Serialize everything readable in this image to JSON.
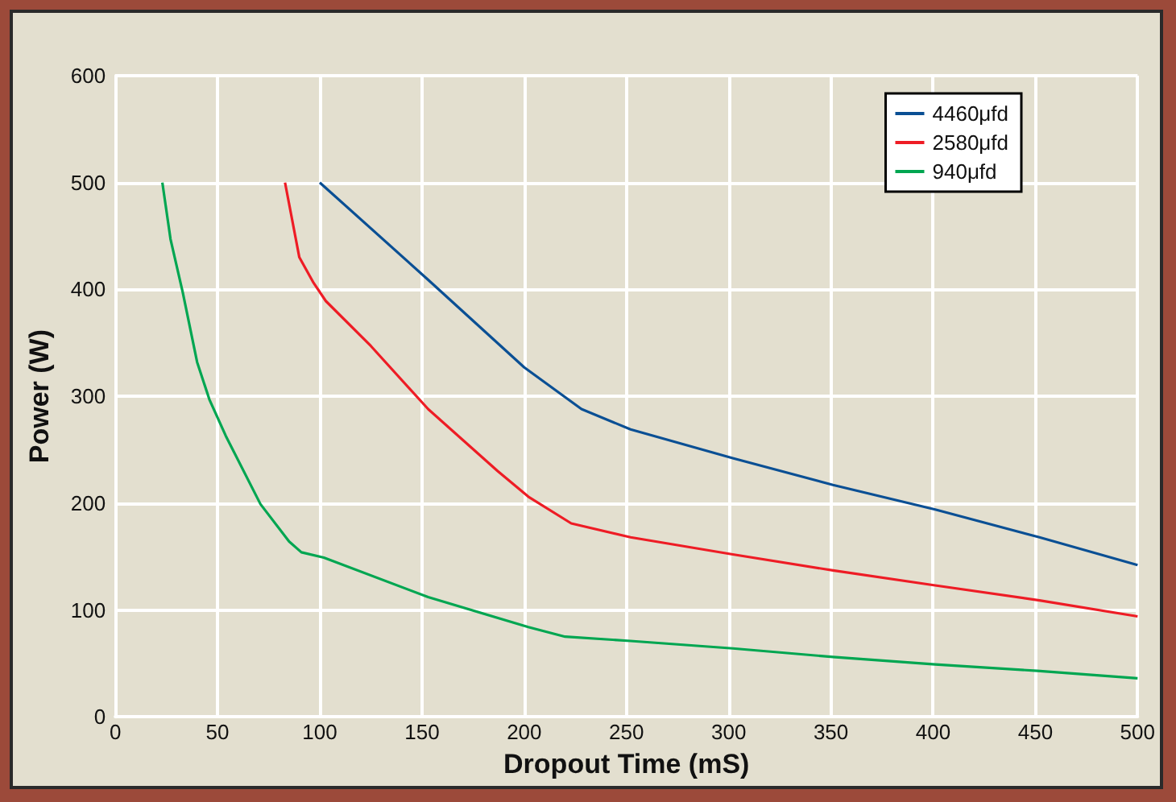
{
  "chart_data": {
    "type": "line",
    "xlabel": "Dropout Time (mS)",
    "ylabel": "Power (W)",
    "xlim": [
      0,
      500
    ],
    "xticks": [
      0,
      50,
      100,
      150,
      200,
      250,
      300,
      350,
      400,
      450,
      500
    ],
    "ylim": [
      0,
      600
    ],
    "yticks": [
      0,
      100,
      200,
      300,
      400,
      500,
      600
    ],
    "grid": true,
    "legend": "top right",
    "marker": "none",
    "line_style": "solid",
    "series": [
      {
        "name": "4460μfd",
        "color": "#0a4f94",
        "x": [
          100,
          153,
          200,
          228,
          252,
          302,
          351,
          401,
          452,
          500
        ],
        "values": [
          500,
          409,
          327,
          288,
          269,
          242,
          217,
          194,
          168,
          142
        ]
      },
      {
        "name": "2580μfd",
        "color": "#ee1c25",
        "x": [
          83,
          86,
          90,
          97,
          103,
          125,
          153,
          187,
          202,
          223,
          252,
          302,
          351,
          401,
          452,
          500
        ],
        "values": [
          500,
          470,
          430,
          406,
          389,
          347,
          288,
          230,
          206,
          181,
          168,
          152,
          137,
          123,
          109,
          94
        ]
      },
      {
        "name": "940μfd",
        "color": "#00a651",
        "x": [
          23,
          27,
          33,
          40,
          46,
          54,
          71,
          85,
          91,
          102,
          153,
          202,
          220,
          252,
          302,
          351,
          401,
          451,
          500
        ],
        "values": [
          500,
          447,
          397,
          332,
          297,
          263,
          199,
          164,
          154,
          149,
          112,
          84,
          75,
          71,
          64,
          56,
          49,
          43,
          36
        ]
      }
    ]
  }
}
